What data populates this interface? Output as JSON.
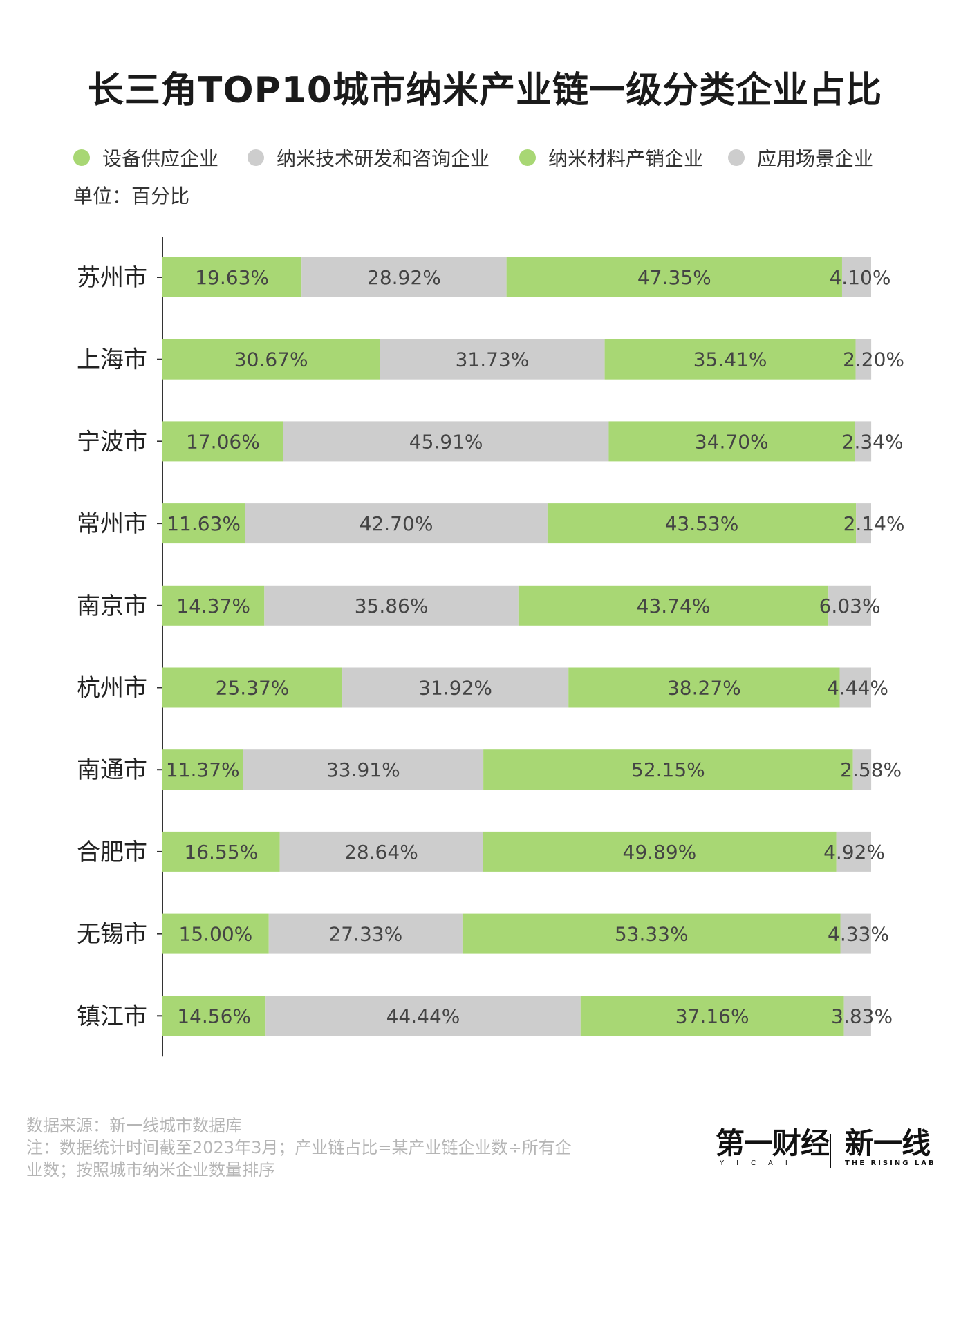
{
  "chart_data": {
    "type": "bar",
    "orientation": "horizontal",
    "stacked": true,
    "title": "长三角TOP10城市纳米产业链一级分类企业占比",
    "unit_label": "单位：百分比",
    "categories": [
      "苏州市",
      "上海市",
      "宁波市",
      "常州市",
      "南京市",
      "杭州市",
      "南通市",
      "合肥市",
      "无锡市",
      "镇江市"
    ],
    "series": [
      {
        "name": "设备供应企业",
        "color": "#a8d774",
        "values": [
          19.63,
          30.67,
          17.06,
          11.63,
          14.37,
          25.37,
          11.37,
          16.55,
          15.0,
          14.56
        ],
        "labels": [
          "19.63%",
          "30.67%",
          "17.06%",
          "11.63%",
          "14.37%",
          "25.37%",
          "11.37%",
          "16.55%",
          "15.00%",
          "14.56%"
        ]
      },
      {
        "name": "纳米技术研发和咨询企业",
        "color": "#cdcdcd",
        "values": [
          28.92,
          31.73,
          45.91,
          42.7,
          35.86,
          31.92,
          33.91,
          28.64,
          27.33,
          44.44
        ],
        "labels": [
          "28.92%",
          "31.73%",
          "45.91%",
          "42.70%",
          "35.86%",
          "31.92%",
          "33.91%",
          "28.64%",
          "27.33%",
          "44.44%"
        ]
      },
      {
        "name": "纳米材料产销企业",
        "color": "#a8d774",
        "values": [
          47.35,
          35.41,
          34.7,
          43.53,
          43.74,
          38.27,
          52.15,
          49.89,
          53.33,
          37.16
        ],
        "labels": [
          "47.35%",
          "35.41%",
          "34.70%",
          "43.53%",
          "43.74%",
          "38.27%",
          "52.15%",
          "49.89%",
          "53.33%",
          "37.16%"
        ]
      },
      {
        "name": "应用场景企业",
        "color": "#cdcdcd",
        "values": [
          4.1,
          2.2,
          2.34,
          2.14,
          6.03,
          4.44,
          2.58,
          4.92,
          4.33,
          3.83
        ],
        "labels": [
          "4.10%",
          "2.20%",
          "2.34%",
          "2.14%",
          "6.03%",
          "4.44%",
          "2.58%",
          "4.92%",
          "4.33%",
          "3.83%"
        ]
      }
    ],
    "xlim": [
      0,
      100
    ],
    "legend_position": "top",
    "grid": false
  },
  "footer": {
    "source": "数据来源：新一线城市数据库",
    "note_line1": "注：数据统计时间截至2023年3月；产业链占比=某产业链企业数÷所有企",
    "note_line2": "业数；按照城市纳米企业数量排序"
  },
  "logos": {
    "yicai_main": "第一财经",
    "yicai_sub": "YICAI",
    "rising_main": "新一线",
    "rising_sub": "THE RISING LAB"
  }
}
